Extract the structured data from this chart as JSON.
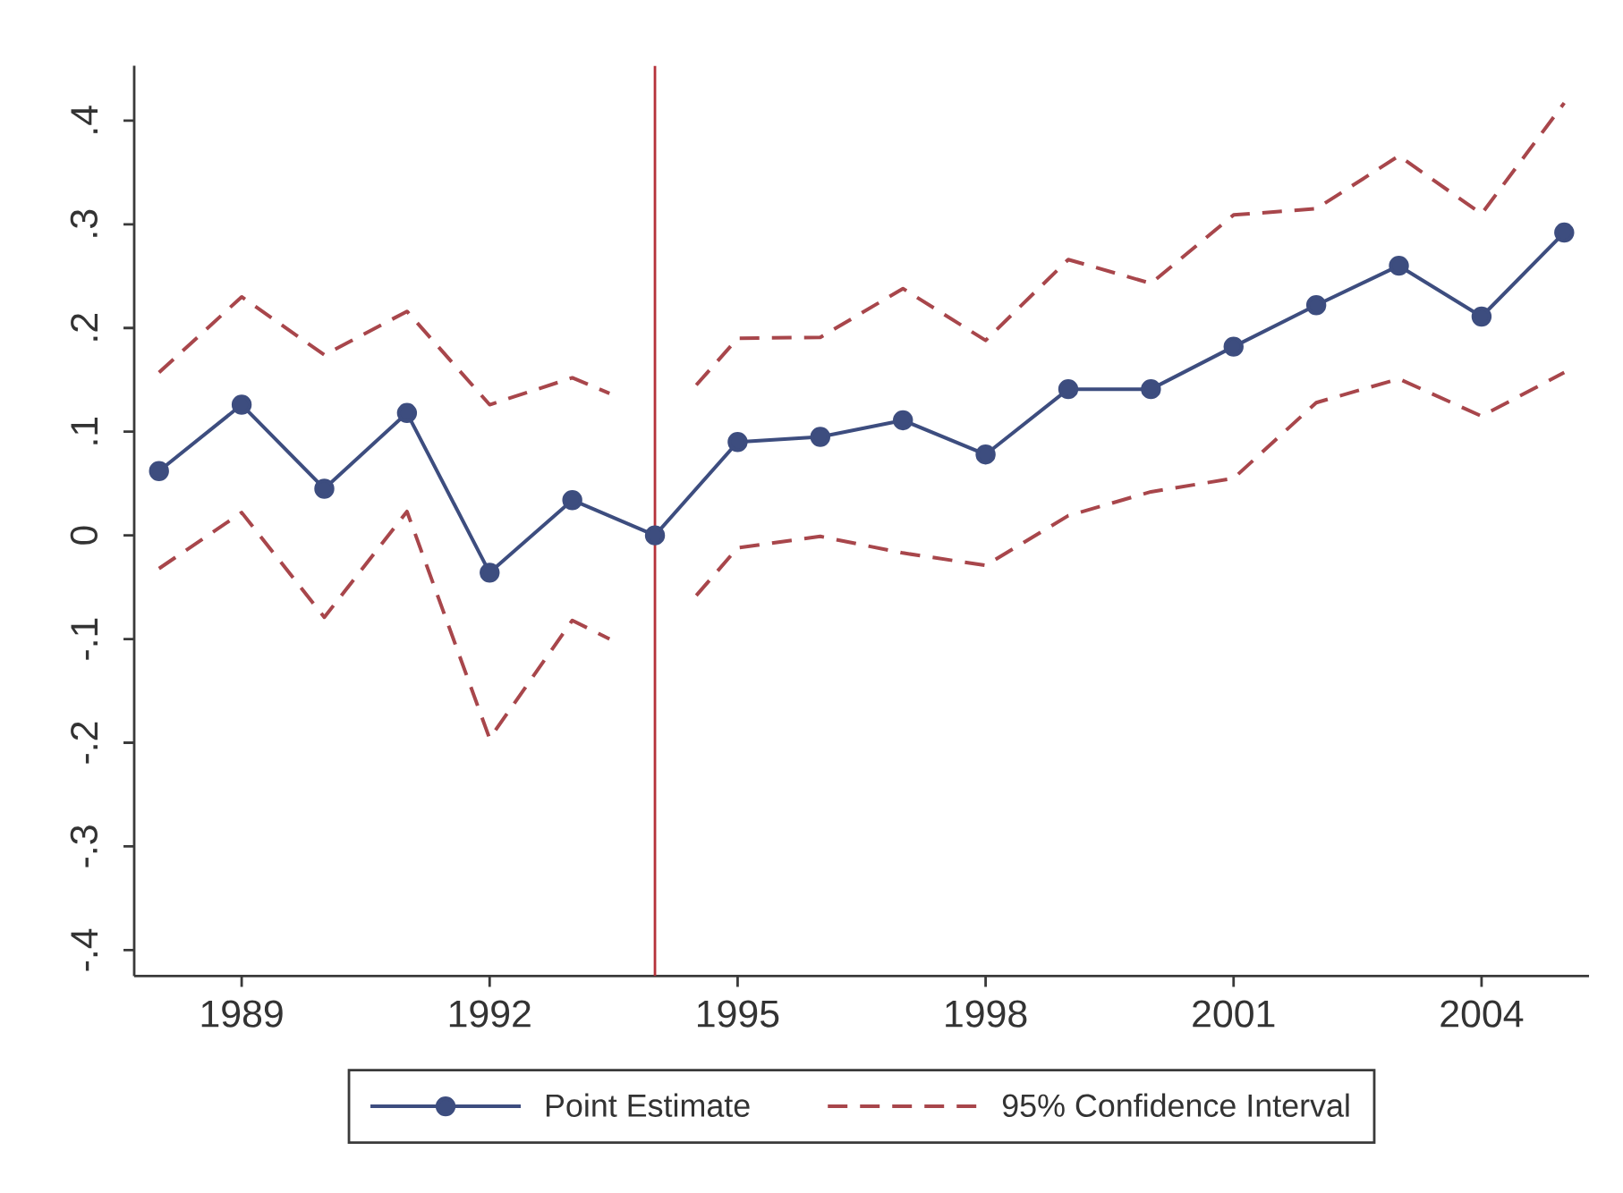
{
  "chart_data": {
    "type": "line",
    "x": [
      1988,
      1989,
      1990,
      1991,
      1992,
      1993,
      1994,
      1995,
      1996,
      1997,
      1998,
      1999,
      2000,
      2001,
      2002,
      2003,
      2004,
      2005
    ],
    "xlim": [
      1987.7,
      2005.3
    ],
    "ylim": [
      -0.425,
      0.453
    ],
    "xticks": [
      1989,
      1992,
      1995,
      1998,
      2001,
      2004
    ],
    "yticks": [
      {
        "value": -0.4,
        "label": "-.4"
      },
      {
        "value": -0.3,
        "label": "-.3"
      },
      {
        "value": -0.2,
        "label": "-.2"
      },
      {
        "value": -0.1,
        "label": "-.1"
      },
      0,
      {
        "value": 0.1,
        "label": ".1"
      },
      {
        "value": 0.2,
        "label": ".2"
      },
      {
        "value": 0.3,
        "label": ".3"
      },
      {
        "value": 0.4,
        "label": ".4"
      }
    ],
    "legend": "bottom",
    "series": [
      {
        "name": "Point Estimate",
        "color": "#3d4d7f",
        "marker": "circle",
        "line_style": "solid",
        "values": [
          0.062,
          0.126,
          0.045,
          0.118,
          -0.036,
          0.034,
          0,
          0.09,
          0.095,
          0.111,
          0.078,
          0.141,
          0.141,
          0.182,
          0.222,
          0.26,
          0.211,
          0.292
        ]
      },
      {
        "name": "95% Confidence Interval",
        "color": "#a8464b",
        "marker": "none",
        "line_style": "dashed",
        "x": [
          1988,
          1989,
          1990,
          1991,
          1992,
          1993,
          1993.45,
          1994,
          1994.5,
          1995,
          1996,
          1997,
          1998,
          1999,
          2000,
          2001,
          2002,
          2003,
          2004,
          2005
        ],
        "values": [
          0.157,
          0.23,
          0.174,
          0.216,
          0.126,
          0.152,
          0.137,
          null,
          0.145,
          0.19,
          0.191,
          0.238,
          0.188,
          0.266,
          0.243,
          0.309,
          0.315,
          0.366,
          0.31,
          0.417
        ]
      },
      {
        "color": "#a8464b",
        "marker": "none",
        "line_style": "dashed",
        "x": [
          1988,
          1989,
          1990,
          1991,
          1992,
          1993,
          1993.45,
          1994,
          1994.5,
          1995,
          1996,
          1997,
          1998,
          1999,
          2000,
          2001,
          2002,
          2003,
          2004,
          2005
        ],
        "values": [
          -0.032,
          0.022,
          -0.079,
          0.023,
          -0.196,
          -0.082,
          -0.1,
          null,
          -0.058,
          -0.012,
          -0.001,
          -0.017,
          -0.029,
          0.019,
          0.042,
          0.055,
          0.128,
          0.151,
          0.115,
          0.157
        ]
      }
    ],
    "ref_lines": [
      {
        "axis": "x",
        "value": 1994,
        "color": "#b5323a"
      }
    ]
  }
}
